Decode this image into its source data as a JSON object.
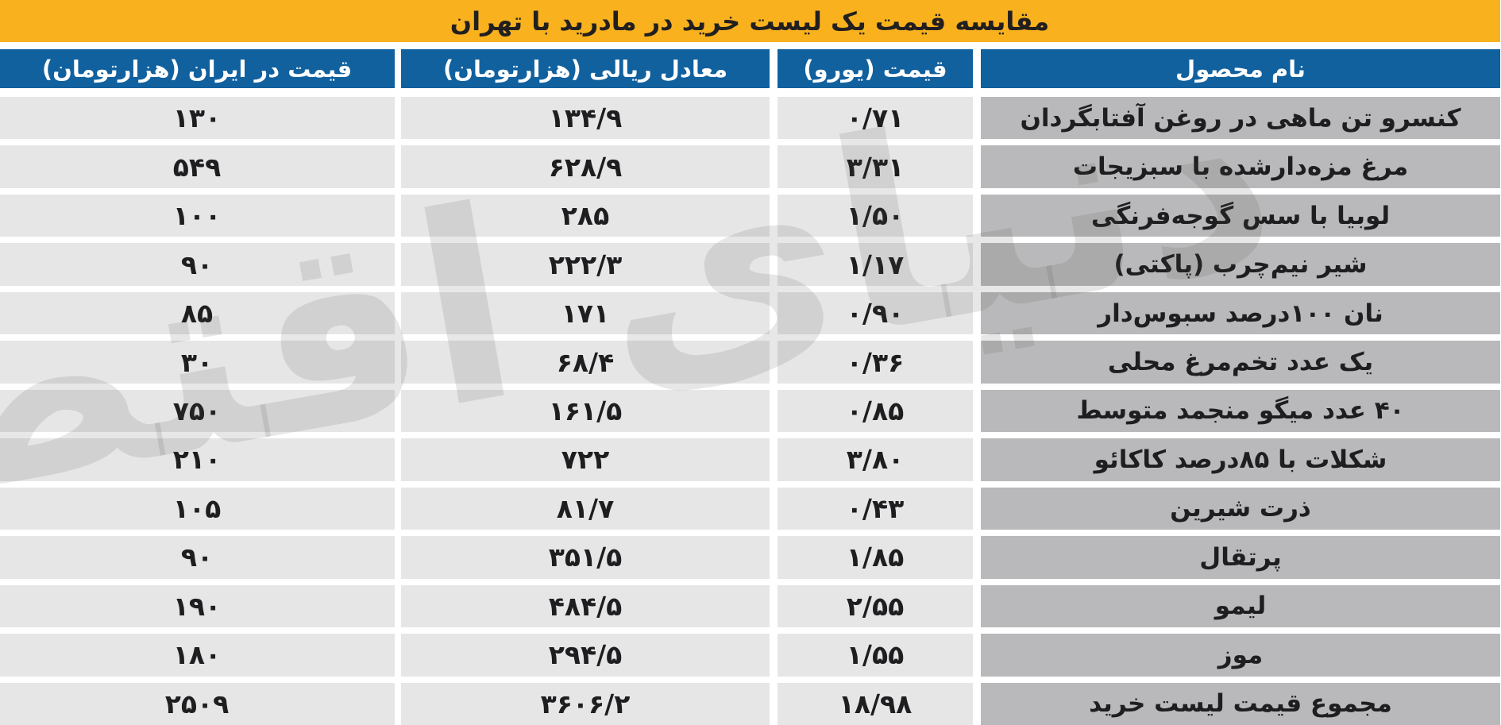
{
  "title": "مقایسه قیمت یک لیست خرید در مادرید با تهران",
  "watermark": "دنیای اقتصاد",
  "columns": [
    {
      "key": "name",
      "label": "نام محصول"
    },
    {
      "key": "euro",
      "label": "قیمت (یورو)"
    },
    {
      "key": "rial",
      "label": "معادل ریالی (هزارتومان)"
    },
    {
      "key": "iran",
      "label": "قیمت در ایران (هزارتومان)"
    }
  ],
  "rows": [
    {
      "name": "کنسرو تن ماهی در روغن آفتابگردان",
      "euro": "۰/۷۱",
      "rial": "۱۳۴/۹",
      "iran": "۱۳۰"
    },
    {
      "name": "مرغ مزه‌دارشده با سبزیجات",
      "euro": "۳/۳۱",
      "rial": "۶۲۸/۹",
      "iran": "۵۴۹"
    },
    {
      "name": "لوبیا با سس گوجه‌فرنگی",
      "euro": "۱/۵۰",
      "rial": "۲۸۵",
      "iran": "۱۰۰"
    },
    {
      "name": "شیر نیم‌چرب (پاکتی)",
      "euro": "۱/۱۷",
      "rial": "۲۲۲/۳",
      "iran": "۹۰"
    },
    {
      "name": "نان ۱۰۰درصد سبوس‌دار",
      "euro": "۰/۹۰",
      "rial": "۱۷۱",
      "iran": "۸۵"
    },
    {
      "name": "یک عدد تخم‌مرغ محلی",
      "euro": "۰/۳۶",
      "rial": "۶۸/۴",
      "iran": "۳۰"
    },
    {
      "name": "۴۰ عدد میگو منجمد متوسط",
      "euro": "۰/۸۵",
      "rial": "۱۶۱/۵",
      "iran": "۷۵۰"
    },
    {
      "name": "شکلات با ۸۵درصد کاکائو",
      "euro": "۳/۸۰",
      "rial": "۷۲۲",
      "iran": "۲۱۰"
    },
    {
      "name": "ذرت شیرین",
      "euro": "۰/۴۳",
      "rial": "۸۱/۷",
      "iran": "۱۰۵"
    },
    {
      "name": "پرتقال",
      "euro": "۱/۸۵",
      "rial": "۳۵۱/۵",
      "iran": "۹۰"
    },
    {
      "name": "لیمو",
      "euro": "۲/۵۵",
      "rial": "۴۸۴/۵",
      "iran": "۱۹۰"
    },
    {
      "name": "موز",
      "euro": "۱/۵۵",
      "rial": "۲۹۴/۵",
      "iran": "۱۸۰"
    },
    {
      "name": "مجموع قیمت لیست خرید",
      "euro": "۱۸/۹۸",
      "rial": "۳۶۰۶/۲",
      "iran": "۲۵۰۹"
    }
  ],
  "colors": {
    "yellow": "#F9B11E",
    "blue": "#11619F",
    "namecell": "#B9B9BB",
    "numcell": "#E6E6E7",
    "text": "#1E1E20"
  },
  "chart_data": {
    "type": "table",
    "title": "مقایسه قیمت یک لیست خرید در مادرید با تهران",
    "columns": [
      "نام محصول",
      "قیمت (یورو)",
      "معادل ریالی (هزارتومان)",
      "قیمت در ایران (هزارتومان)"
    ],
    "rows": [
      {
        "product": "کنسرو تن ماهی در روغن آفتابگردان",
        "price_eur": 0.71,
        "rial_equivalent_kToman": 134.9,
        "price_iran_kToman": 130
      },
      {
        "product": "مرغ مزه‌دارشده با سبزیجات",
        "price_eur": 3.31,
        "rial_equivalent_kToman": 628.9,
        "price_iran_kToman": 549
      },
      {
        "product": "لوبیا با سس گوجه‌فرنگی",
        "price_eur": 1.5,
        "rial_equivalent_kToman": 285,
        "price_iran_kToman": 100
      },
      {
        "product": "شیر نیم‌چرب (پاکتی)",
        "price_eur": 1.17,
        "rial_equivalent_kToman": 222.3,
        "price_iran_kToman": 90
      },
      {
        "product": "نان ۱۰۰درصد سبوس‌دار",
        "price_eur": 0.9,
        "rial_equivalent_kToman": 171,
        "price_iran_kToman": 85
      },
      {
        "product": "یک عدد تخم‌مرغ محلی",
        "price_eur": 0.36,
        "rial_equivalent_kToman": 68.4,
        "price_iran_kToman": 30
      },
      {
        "product": "۴۰ عدد میگو منجمد متوسط",
        "price_eur": 0.85,
        "rial_equivalent_kToman": 161.5,
        "price_iran_kToman": 750
      },
      {
        "product": "شکلات با ۸۵درصد کاکائو",
        "price_eur": 3.8,
        "rial_equivalent_kToman": 722,
        "price_iran_kToman": 210
      },
      {
        "product": "ذرت شیرین",
        "price_eur": 0.43,
        "rial_equivalent_kToman": 81.7,
        "price_iran_kToman": 105
      },
      {
        "product": "پرتقال",
        "price_eur": 1.85,
        "rial_equivalent_kToman": 351.5,
        "price_iran_kToman": 90
      },
      {
        "product": "لیمو",
        "price_eur": 2.55,
        "rial_equivalent_kToman": 484.5,
        "price_iran_kToman": 190
      },
      {
        "product": "موز",
        "price_eur": 1.55,
        "rial_equivalent_kToman": 294.5,
        "price_iran_kToman": 180
      },
      {
        "product": "مجموع قیمت لیست خرید",
        "price_eur": 18.98,
        "rial_equivalent_kToman": 3606.2,
        "price_iran_kToman": 2509
      }
    ]
  }
}
